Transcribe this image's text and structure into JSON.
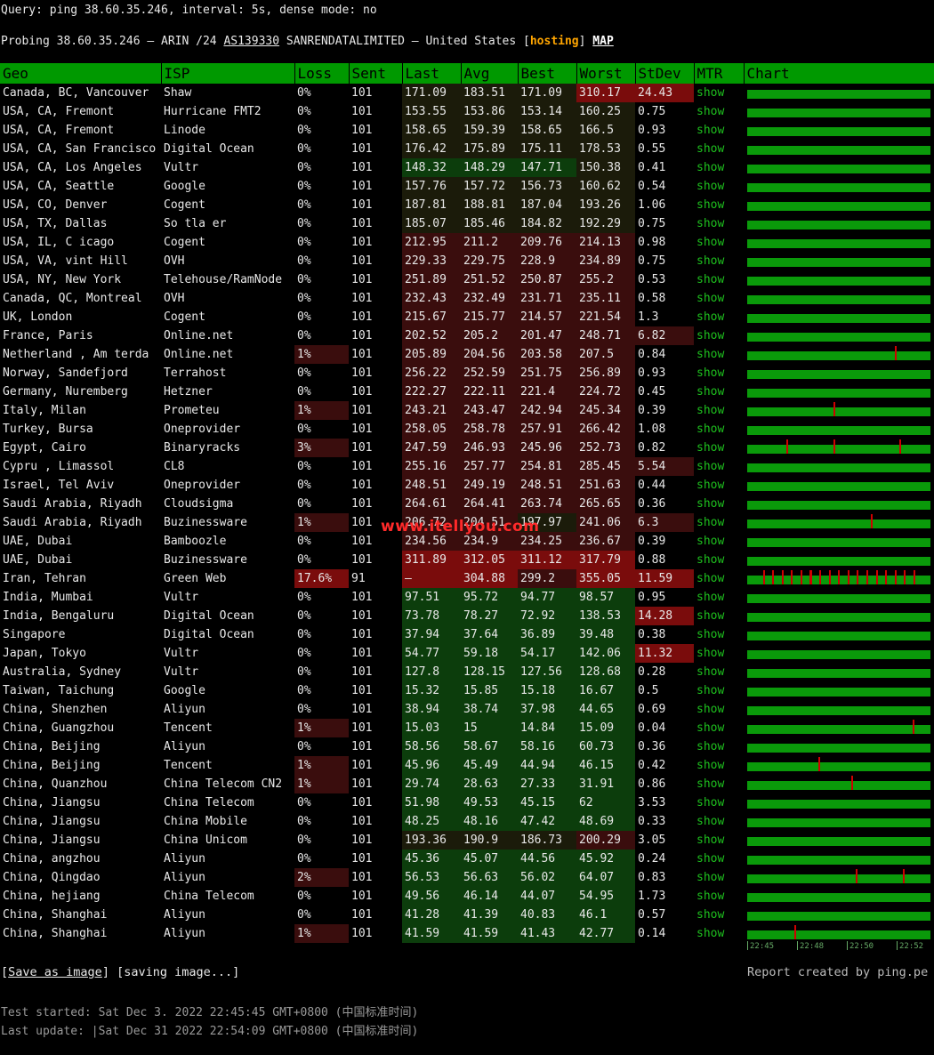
{
  "header": {
    "query": "Query: ping 38.60.35.246, interval: 5s, dense mode: no",
    "probe_prefix": "Probing 38.60.35.246 — ARIN /24 ",
    "asn": "AS139330",
    "probe_org": " SANRENDATALIMITED – United States [",
    "hosting": "hosting",
    "probe_close": "] ",
    "map": "MAP"
  },
  "columns": [
    "Geo",
    "ISP",
    "Loss",
    "Sent",
    "Last",
    "Avg",
    "Best",
    "Worst",
    "StDev",
    "MTR",
    "Chart"
  ],
  "colors": {
    "header_green": "#009900",
    "good_green": "#0c3d0c",
    "warm_red": "#3a0d0d",
    "hot_red": "#7a0c0c",
    "link_green": "#1ec01e",
    "hosting_orange": "#ffa500"
  },
  "rows": [
    {
      "geo": "Canada, BC, Vancouver",
      "isp": "Shaw",
      "loss": "0%",
      "sent": "101",
      "last": "171.09",
      "avg": "183.51",
      "best": "171.09",
      "worst": "310.17",
      "stdev": "24.43",
      "mtr": "show"
    },
    {
      "geo": "USA, CA, Fremont",
      "isp": "Hurricane FMT2",
      "loss": "0%",
      "sent": "101",
      "last": "153.55",
      "avg": "153.86",
      "best": "153.14",
      "worst": "160.25",
      "stdev": "0.75",
      "mtr": "show"
    },
    {
      "geo": "USA, CA, Fremont",
      "isp": "Linode",
      "loss": "0%",
      "sent": "101",
      "last": "158.65",
      "avg": "159.39",
      "best": "158.65",
      "worst": "166.5",
      "stdev": "0.93",
      "mtr": "show"
    },
    {
      "geo": "USA, CA, San Francisco",
      "isp": "Digital Ocean",
      "loss": "0%",
      "sent": "101",
      "last": "176.42",
      "avg": "175.89",
      "best": "175.11",
      "worst": "178.53",
      "stdev": "0.55",
      "mtr": "show"
    },
    {
      "geo": "USA, CA, Los Angeles",
      "isp": "Vultr",
      "loss": "0%",
      "sent": "101",
      "last": "148.32",
      "avg": "148.29",
      "best": "147.71",
      "worst": "150.38",
      "stdev": "0.41",
      "mtr": "show"
    },
    {
      "geo": "USA, CA, Seattle",
      "isp": "Google",
      "loss": "0%",
      "sent": "101",
      "last": "157.76",
      "avg": "157.72",
      "best": "156.73",
      "worst": "160.62",
      "stdev": "0.54",
      "mtr": "show"
    },
    {
      "geo": "USA, CO, Denver",
      "isp": "Cogent",
      "loss": "0%",
      "sent": "101",
      "last": "187.81",
      "avg": "188.81",
      "best": "187.04",
      "worst": "193.26",
      "stdev": "1.06",
      "mtr": "show"
    },
    {
      "geo": "USA, TX, Dallas",
      "isp": "So tla er",
      "loss": "0%",
      "sent": "101",
      "last": "185.07",
      "avg": "185.46",
      "best": "184.82",
      "worst": "192.29",
      "stdev": "0.75",
      "mtr": "show"
    },
    {
      "geo": "USA, IL, C icago",
      "isp": "Cogent",
      "loss": "0%",
      "sent": "101",
      "last": "212.95",
      "avg": "211.2",
      "best": "209.76",
      "worst": "214.13",
      "stdev": "0.98",
      "mtr": "show"
    },
    {
      "geo": "USA, VA, vint Hill",
      "isp": "OVH",
      "loss": "0%",
      "sent": "101",
      "last": "229.33",
      "avg": "229.75",
      "best": "228.9",
      "worst": "234.89",
      "stdev": "0.75",
      "mtr": "show"
    },
    {
      "geo": "USA, NY, New York",
      "isp": "Telehouse/RamNode",
      "loss": "0%",
      "sent": "101",
      "last": "251.89",
      "avg": "251.52",
      "best": "250.87",
      "worst": "255.2",
      "stdev": "0.53",
      "mtr": "show"
    },
    {
      "geo": "Canada, QC, Montreal",
      "isp": "OVH",
      "loss": "0%",
      "sent": "101",
      "last": "232.43",
      "avg": "232.49",
      "best": "231.71",
      "worst": "235.11",
      "stdev": "0.58",
      "mtr": "show"
    },
    {
      "geo": "UK, London",
      "isp": "Cogent",
      "loss": "0%",
      "sent": "101",
      "last": "215.67",
      "avg": "215.77",
      "best": "214.57",
      "worst": "221.54",
      "stdev": "1.3",
      "mtr": "show"
    },
    {
      "geo": "France, Paris",
      "isp": "Online.net",
      "loss": "0%",
      "sent": "101",
      "last": "202.52",
      "avg": "205.2",
      "best": "201.47",
      "worst": "248.71",
      "stdev": "6.82",
      "mtr": "show"
    },
    {
      "geo": "Netherland , Am terda",
      "isp": "Online.net",
      "loss": "1%",
      "sent": "101",
      "last": "205.89",
      "avg": "204.56",
      "best": "203.58",
      "worst": "207.5",
      "stdev": "0.84",
      "mtr": "show"
    },
    {
      "geo": "Norway, Sandefjord",
      "isp": "Terrahost",
      "loss": "0%",
      "sent": "101",
      "last": "256.22",
      "avg": "252.59",
      "best": "251.75",
      "worst": "256.89",
      "stdev": "0.93",
      "mtr": "show"
    },
    {
      "geo": "Germany, Nuremberg",
      "isp": "Hetzner",
      "loss": "0%",
      "sent": "101",
      "last": "222.27",
      "avg": "222.11",
      "best": "221.4",
      "worst": "224.72",
      "stdev": "0.45",
      "mtr": "show"
    },
    {
      "geo": "Italy, Milan",
      "isp": "Prometeu",
      "loss": "1%",
      "sent": "101",
      "last": "243.21",
      "avg": "243.47",
      "best": "242.94",
      "worst": "245.34",
      "stdev": "0.39",
      "mtr": "show"
    },
    {
      "geo": "Turkey, Bursa",
      "isp": "Oneprovider",
      "loss": "0%",
      "sent": "101",
      "last": "258.05",
      "avg": "258.78",
      "best": "257.91",
      "worst": "266.42",
      "stdev": "1.08",
      "mtr": "show"
    },
    {
      "geo": "Egypt, Cairo",
      "isp": "Binaryracks",
      "loss": "3%",
      "sent": "101",
      "last": "247.59",
      "avg": "246.93",
      "best": "245.96",
      "worst": "252.73",
      "stdev": "0.82",
      "mtr": "show"
    },
    {
      "geo": "Cypru , Limassol",
      "isp": "CL8",
      "loss": "0%",
      "sent": "101",
      "last": "255.16",
      "avg": "257.77",
      "best": "254.81",
      "worst": "285.45",
      "stdev": "5.54",
      "mtr": "show"
    },
    {
      "geo": "Israel, Tel Aviv",
      "isp": "Oneprovider",
      "loss": "0%",
      "sent": "101",
      "last": "248.51",
      "avg": "249.19",
      "best": "248.51",
      "worst": "251.63",
      "stdev": "0.44",
      "mtr": "show"
    },
    {
      "geo": "Saudi Arabia, Riyadh",
      "isp": "Cloudsigma",
      "loss": "0%",
      "sent": "101",
      "last": "264.61",
      "avg": "264.41",
      "best": "263.74",
      "worst": "265.65",
      "stdev": "0.36",
      "mtr": "show"
    },
    {
      "geo": "Saudi Arabia, Riyadh",
      "isp": "Buzinessware",
      "loss": "1%",
      "sent": "101",
      "last": "206.72",
      "avg": "204.51",
      "best": "197.97",
      "worst": "241.06",
      "stdev": "6.3",
      "mtr": "show"
    },
    {
      "geo": "UAE, Dubai",
      "isp": "Bamboozle",
      "loss": "0%",
      "sent": "101",
      "last": "234.56",
      "avg": "234.9",
      "best": "234.25",
      "worst": "236.67",
      "stdev": "0.39",
      "mtr": "show"
    },
    {
      "geo": "UAE, Dubai",
      "isp": "Buzinessware",
      "loss": "0%",
      "sent": "101",
      "last": "311.89",
      "avg": "312.05",
      "best": "311.12",
      "worst": "317.79",
      "stdev": "0.88",
      "mtr": "show"
    },
    {
      "geo": "Iran, Tehran",
      "isp": "Green Web",
      "loss": "17.6%",
      "sent": "91",
      "last": "–",
      "avg": "304.88",
      "best": "299.2",
      "worst": "355.05",
      "stdev": "11.59",
      "mtr": "show"
    },
    {
      "geo": "India, Mumbai",
      "isp": "Vultr",
      "loss": "0%",
      "sent": "101",
      "last": "97.51",
      "avg": "95.72",
      "best": "94.77",
      "worst": "98.57",
      "stdev": "0.95",
      "mtr": "show"
    },
    {
      "geo": "India, Bengaluru",
      "isp": "Digital Ocean",
      "loss": "0%",
      "sent": "101",
      "last": "73.78",
      "avg": "78.27",
      "best": "72.92",
      "worst": "138.53",
      "stdev": "14.28",
      "mtr": "show"
    },
    {
      "geo": "Singapore",
      "isp": "Digital Ocean",
      "loss": "0%",
      "sent": "101",
      "last": "37.94",
      "avg": "37.64",
      "best": "36.89",
      "worst": "39.48",
      "stdev": "0.38",
      "mtr": "show"
    },
    {
      "geo": "Japan, Tokyo",
      "isp": "Vultr",
      "loss": "0%",
      "sent": "101",
      "last": "54.77",
      "avg": "59.18",
      "best": "54.17",
      "worst": "142.06",
      "stdev": "11.32",
      "mtr": "show"
    },
    {
      "geo": "Australia, Sydney",
      "isp": "Vultr",
      "loss": "0%",
      "sent": "101",
      "last": "127.8",
      "avg": "128.15",
      "best": "127.56",
      "worst": "128.68",
      "stdev": "0.28",
      "mtr": "show"
    },
    {
      "geo": "Taiwan, Taichung",
      "isp": "Google",
      "loss": "0%",
      "sent": "101",
      "last": "15.32",
      "avg": "15.85",
      "best": "15.18",
      "worst": "16.67",
      "stdev": "0.5",
      "mtr": "show"
    },
    {
      "geo": "China, Shenzhen",
      "isp": "Aliyun",
      "loss": "0%",
      "sent": "101",
      "last": "38.94",
      "avg": "38.74",
      "best": "37.98",
      "worst": "44.65",
      "stdev": "0.69",
      "mtr": "show"
    },
    {
      "geo": "China, Guangzhou",
      "isp": "Tencent",
      "loss": "1%",
      "sent": "101",
      "last": "15.03",
      "avg": "15",
      "best": "14.84",
      "worst": "15.09",
      "stdev": "0.04",
      "mtr": "show"
    },
    {
      "geo": "China, Beijing",
      "isp": "Aliyun",
      "loss": "0%",
      "sent": "101",
      "last": "58.56",
      "avg": "58.67",
      "best": "58.16",
      "worst": "60.73",
      "stdev": "0.36",
      "mtr": "show"
    },
    {
      "geo": "China, Beijing",
      "isp": "Tencent",
      "loss": "1%",
      "sent": "101",
      "last": "45.96",
      "avg": "45.49",
      "best": "44.94",
      "worst": "46.15",
      "stdev": "0.42",
      "mtr": "show"
    },
    {
      "geo": "China, Quanzhou",
      "isp": "China Telecom CN2",
      "loss": "1%",
      "sent": "101",
      "last": "29.74",
      "avg": "28.63",
      "best": "27.33",
      "worst": "31.91",
      "stdev": "0.86",
      "mtr": "show"
    },
    {
      "geo": "China, Jiangsu",
      "isp": "China Telecom",
      "loss": "0%",
      "sent": "101",
      "last": "51.98",
      "avg": "49.53",
      "best": "45.15",
      "worst": "62",
      "stdev": "3.53",
      "mtr": "show"
    },
    {
      "geo": "China, Jiangsu",
      "isp": "China Mobile",
      "loss": "0%",
      "sent": "101",
      "last": "48.25",
      "avg": "48.16",
      "best": "47.42",
      "worst": "48.69",
      "stdev": "0.33",
      "mtr": "show"
    },
    {
      "geo": "China, Jiangsu",
      "isp": "China Unicom",
      "loss": "0%",
      "sent": "101",
      "last": "193.36",
      "avg": "190.9",
      "best": "186.73",
      "worst": "200.29",
      "stdev": "3.05",
      "mtr": "show"
    },
    {
      "geo": "China, angzhou",
      "isp": "Aliyun",
      "loss": "0%",
      "sent": "101",
      "last": "45.36",
      "avg": "45.07",
      "best": "44.56",
      "worst": "45.92",
      "stdev": "0.24",
      "mtr": "show"
    },
    {
      "geo": "China, Qingdao",
      "isp": "Aliyun",
      "loss": "2%",
      "sent": "101",
      "last": "56.53",
      "avg": "56.63",
      "best": "56.02",
      "worst": "64.07",
      "stdev": "0.83",
      "mtr": "show"
    },
    {
      "geo": "China, hejiang",
      "isp": "China Telecom",
      "loss": "0%",
      "sent": "101",
      "last": "49.56",
      "avg": "46.14",
      "best": "44.07",
      "worst": "54.95",
      "stdev": "1.73",
      "mtr": "show"
    },
    {
      "geo": "China, Shanghai",
      "isp": "Aliyun",
      "loss": "0%",
      "sent": "101",
      "last": "41.28",
      "avg": "41.39",
      "best": "40.83",
      "worst": "46.1",
      "stdev": "0.57",
      "mtr": "show"
    },
    {
      "geo": "China, Shanghai",
      "isp": "Aliyun",
      "loss": "1%",
      "sent": "101",
      "last": "41.59",
      "avg": "41.59",
      "best": "41.43",
      "worst": "42.77",
      "stdev": "0.14",
      "mtr": "show"
    }
  ],
  "chart_axis": [
    "22:45",
    "22:48",
    "22:50",
    "22:52"
  ],
  "footer": {
    "save_link": "Save as image",
    "saving": "[saving image...]",
    "report": "Report created by ping.pe",
    "started": "Test started: Sat Dec 3. 2022 22:45:45 GMT+0800 (中国标准时间)",
    "updated": "Last update: |Sat Dec 31 2022 22:54:09 GMT+0800 (中国标准时间)"
  },
  "watermark": "www.itellyou.com"
}
